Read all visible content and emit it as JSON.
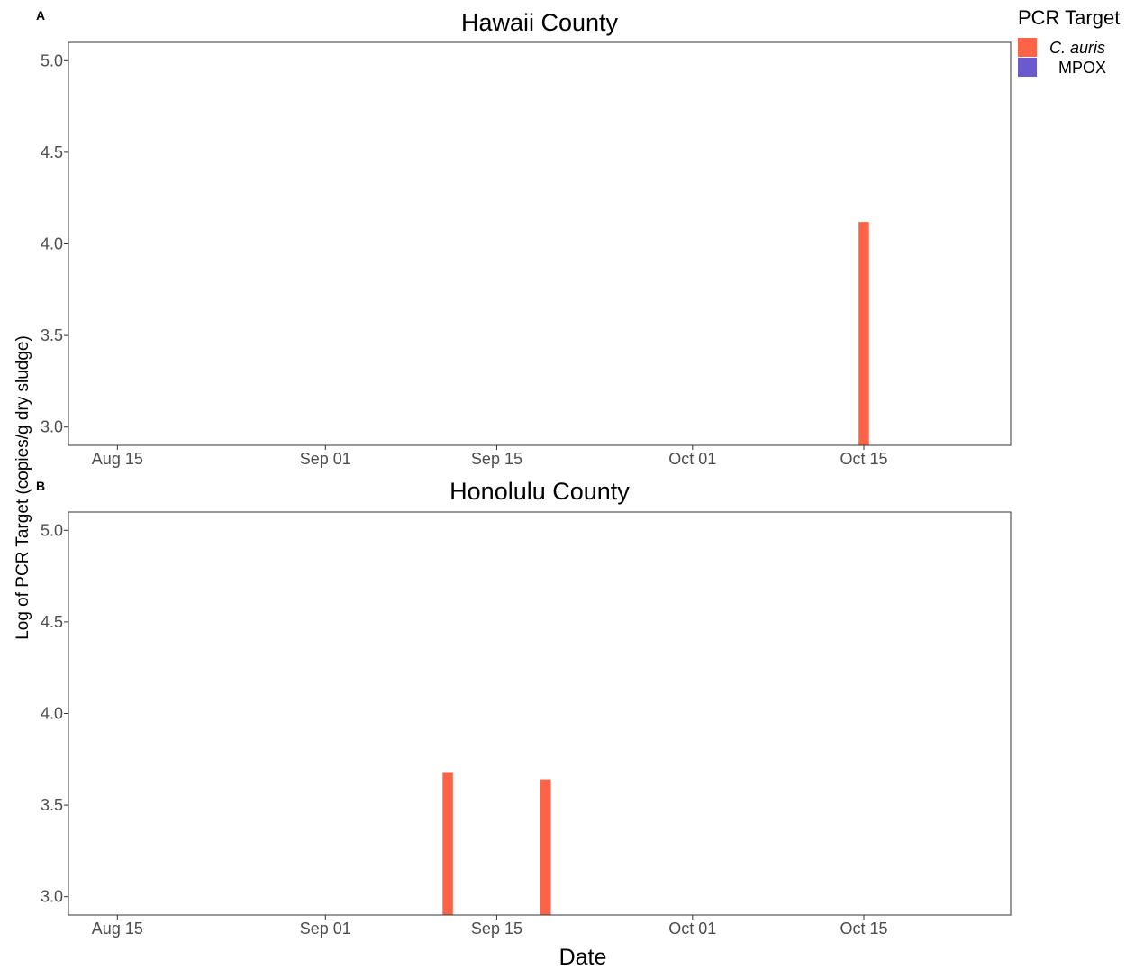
{
  "legend": {
    "title": "PCR Target",
    "items": [
      {
        "label": "C. auris",
        "color": "#FF6347",
        "italic": true
      },
      {
        "label": "MPOX",
        "color": "#6A5ACD",
        "italic": false
      }
    ]
  },
  "y_axis_title": "Log of PCR Target (copies/g dry sludge)",
  "x_axis_title": "Date",
  "chart_data": [
    {
      "type": "bar",
      "tag": "A",
      "title": "Hawaii County",
      "xlabel": "Date",
      "ylabel": "Log of PCR Target (copies/g dry sludge)",
      "xlim": [
        "2023-08-11",
        "2023-10-27"
      ],
      "ylim": [
        2.9,
        5.1
      ],
      "x_ticks": [
        {
          "date": "2023-08-15",
          "label": "Aug 15"
        },
        {
          "date": "2023-09-01",
          "label": "Sep 01"
        },
        {
          "date": "2023-09-15",
          "label": "Sep 15"
        },
        {
          "date": "2023-10-01",
          "label": "Oct 01"
        },
        {
          "date": "2023-10-15",
          "label": "Oct 15"
        }
      ],
      "y_ticks": [
        {
          "value": 3.0,
          "label": "3.0"
        },
        {
          "value": 3.5,
          "label": "3.5"
        },
        {
          "value": 4.0,
          "label": "4.0"
        },
        {
          "value": 4.5,
          "label": "4.5"
        },
        {
          "value": 5.0,
          "label": "5.0"
        }
      ],
      "grid": false,
      "series": [
        {
          "name": "C. auris",
          "color": "#FF6347",
          "points": [
            {
              "x": "2023-10-15",
              "y": 4.12
            }
          ]
        },
        {
          "name": "MPOX",
          "color": "#6A5ACD",
          "points": []
        }
      ]
    },
    {
      "type": "bar",
      "tag": "B",
      "title": "Honolulu County",
      "xlabel": "Date",
      "ylabel": "Log of PCR Target (copies/g dry sludge)",
      "xlim": [
        "2023-08-11",
        "2023-10-27"
      ],
      "ylim": [
        2.9,
        5.1
      ],
      "x_ticks": [
        {
          "date": "2023-08-15",
          "label": "Aug 15"
        },
        {
          "date": "2023-09-01",
          "label": "Sep 01"
        },
        {
          "date": "2023-09-15",
          "label": "Sep 15"
        },
        {
          "date": "2023-10-01",
          "label": "Oct 01"
        },
        {
          "date": "2023-10-15",
          "label": "Oct 15"
        }
      ],
      "y_ticks": [
        {
          "value": 3.0,
          "label": "3.0"
        },
        {
          "value": 3.5,
          "label": "3.5"
        },
        {
          "value": 4.0,
          "label": "4.0"
        },
        {
          "value": 4.5,
          "label": "4.5"
        },
        {
          "value": 5.0,
          "label": "5.0"
        }
      ],
      "grid": false,
      "series": [
        {
          "name": "C. auris",
          "color": "#FF6347",
          "points": [
            {
              "x": "2023-09-11",
              "y": 3.68
            },
            {
              "x": "2023-09-19",
              "y": 3.64
            }
          ]
        },
        {
          "name": "MPOX",
          "color": "#6A5ACD",
          "points": []
        }
      ]
    }
  ]
}
